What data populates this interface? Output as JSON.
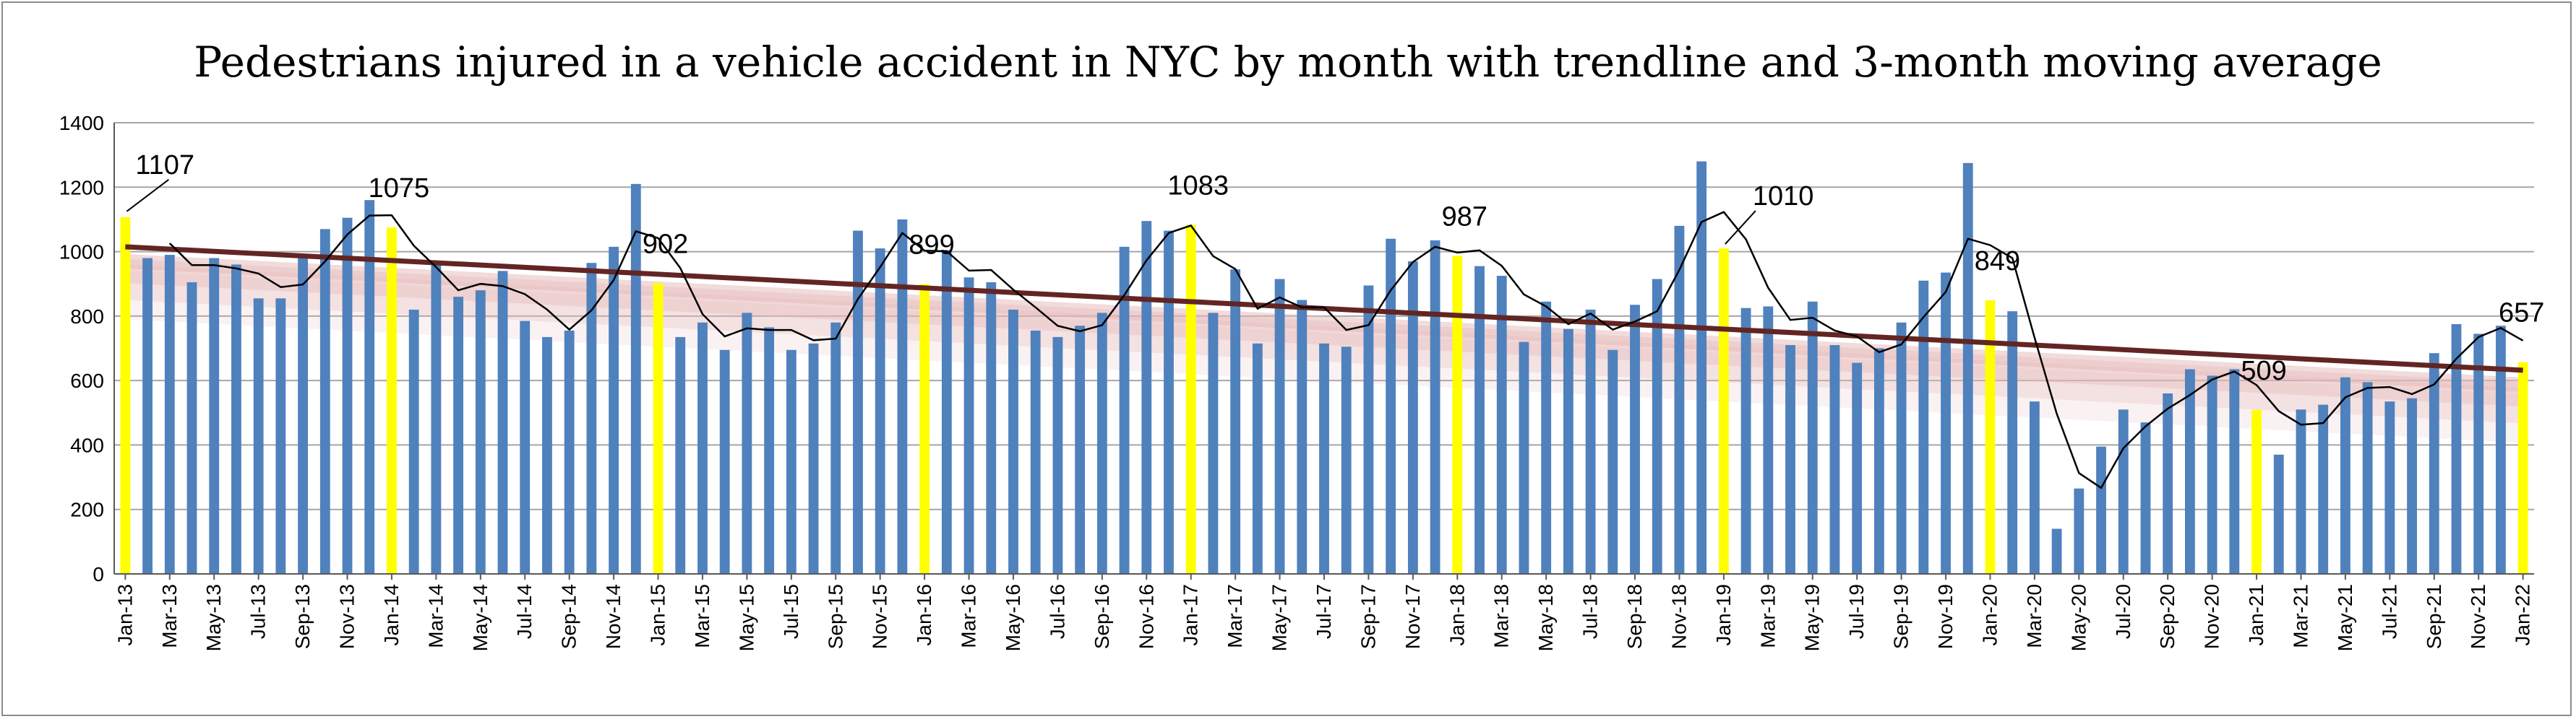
{
  "chart_data": {
    "type": "bar",
    "title": "Pedestrians injured in a vehicle accident in NYC by month with trendline and 3-month moving average",
    "xlabel": "",
    "ylabel": "",
    "ylim": [
      0,
      1400
    ],
    "yticks": [
      "0",
      "200",
      "400",
      "600",
      "800",
      "1000",
      "1200",
      "1400"
    ],
    "grid": true,
    "legend": "none",
    "colors": {
      "bar": "#4f81bd",
      "january_bar": "#ffff00",
      "moving_average": "#000000",
      "trendline": "#632523",
      "trendline_band": "#e6b8b7",
      "axis": "#595959",
      "grid": "#a6a6a6"
    },
    "x_tick_labels": [
      "Jan-13",
      "Mar-13",
      "May-13",
      "Jul-13",
      "Sep-13",
      "Nov-13",
      "Jan-14",
      "Mar-14",
      "May-14",
      "Jul-14",
      "Sep-14",
      "Nov-14",
      "Jan-15",
      "Mar-15",
      "May-15",
      "Jul-15",
      "Sep-15",
      "Nov-15",
      "Jan-16",
      "Mar-16",
      "May-16",
      "Jul-16",
      "Sep-16",
      "Nov-16",
      "Jan-17",
      "Mar-17",
      "May-17",
      "Jul-17",
      "Sep-17",
      "Nov-17",
      "Jan-18",
      "Mar-18",
      "May-18",
      "Jul-18",
      "Sep-18",
      "Nov-18",
      "Jan-19",
      "Mar-19",
      "May-19",
      "Jul-19",
      "Sep-19",
      "Nov-19",
      "Jan-20",
      "Mar-20",
      "May-20",
      "Jul-20",
      "Sep-20",
      "Nov-20",
      "Jan-21",
      "Mar-21",
      "May-21",
      "Jul-21",
      "Sep-21",
      "Nov-21",
      "Jan-22"
    ],
    "series": [
      {
        "name": "",
        "start": "Jan-13",
        "values": [
          1107,
          980,
          990,
          905,
          980,
          960,
          855,
          855,
          985,
          1070,
          1105,
          1160,
          1075,
          820,
          960,
          860,
          880,
          940,
          785,
          735,
          755,
          965,
          1015,
          1210,
          902,
          735,
          780,
          695,
          810,
          765,
          695,
          715,
          780,
          1065,
          1010,
          1100,
          899,
          1005,
          920,
          905,
          820,
          755,
          735,
          770,
          810,
          1015,
          1095,
          1065,
          1083,
          810,
          945,
          715,
          915,
          850,
          715,
          705,
          895,
          1040,
          970,
          1035,
          987,
          955,
          925,
          720,
          845,
          760,
          820,
          695,
          835,
          915,
          1080,
          1280,
          1010,
          825,
          830,
          710,
          845,
          710,
          655,
          700,
          780,
          910,
          935,
          1275,
          849,
          815,
          535,
          140,
          265,
          395,
          510,
          470,
          560,
          635,
          615,
          635,
          509,
          370,
          510,
          525,
          610,
          595,
          535,
          545,
          685,
          775,
          745,
          770,
          657
        ]
      }
    ],
    "moving_average": {
      "period": 3,
      "start": "Mar-13",
      "values": [
        1026,
        958,
        958,
        948,
        932,
        890,
        898,
        970,
        1053,
        1112,
        1113,
        1018,
        952,
        880,
        900,
        893,
        868,
        820,
        758,
        818,
        912,
        1063,
        1042,
        949,
        806,
        737,
        762,
        757,
        757,
        725,
        730,
        853,
        952,
        1058,
        1003,
        1001,
        941,
        943,
        882,
        827,
        770,
        753,
        772,
        865,
        973,
        1058,
        1081,
        986,
        946,
        823,
        858,
        827,
        827,
        757,
        772,
        880,
        968,
        1015,
        997,
        1004,
        956,
        867,
        830,
        775,
        808,
        758,
        783,
        815,
        943,
        1092,
        1123,
        1038,
        888,
        788,
        795,
        755,
        737,
        688,
        712,
        797,
        875,
        1040,
        1020,
        980,
        733,
        497,
        313,
        267,
        390,
        458,
        513,
        555,
        603,
        628,
        586,
        505,
        463,
        468,
        548,
        577,
        580,
        558,
        588,
        668,
        735,
        763,
        724
      ]
    },
    "trendline": {
      "type": "linear",
      "start_value": 1015,
      "end_value": 632
    },
    "data_labels": [
      {
        "month": "Jan-13",
        "text": "1107"
      },
      {
        "month": "Jan-14",
        "text": "1075"
      },
      {
        "month": "Jan-15",
        "text": "902"
      },
      {
        "month": "Jan-16",
        "text": "899"
      },
      {
        "month": "Jan-17",
        "text": "1083"
      },
      {
        "month": "Jan-18",
        "text": "987"
      },
      {
        "month": "Jan-19",
        "text": "1010"
      },
      {
        "month": "Jan-20",
        "text": "849"
      },
      {
        "month": "Jan-21",
        "text": "509"
      },
      {
        "month": "Jan-22",
        "text": "657"
      }
    ]
  }
}
